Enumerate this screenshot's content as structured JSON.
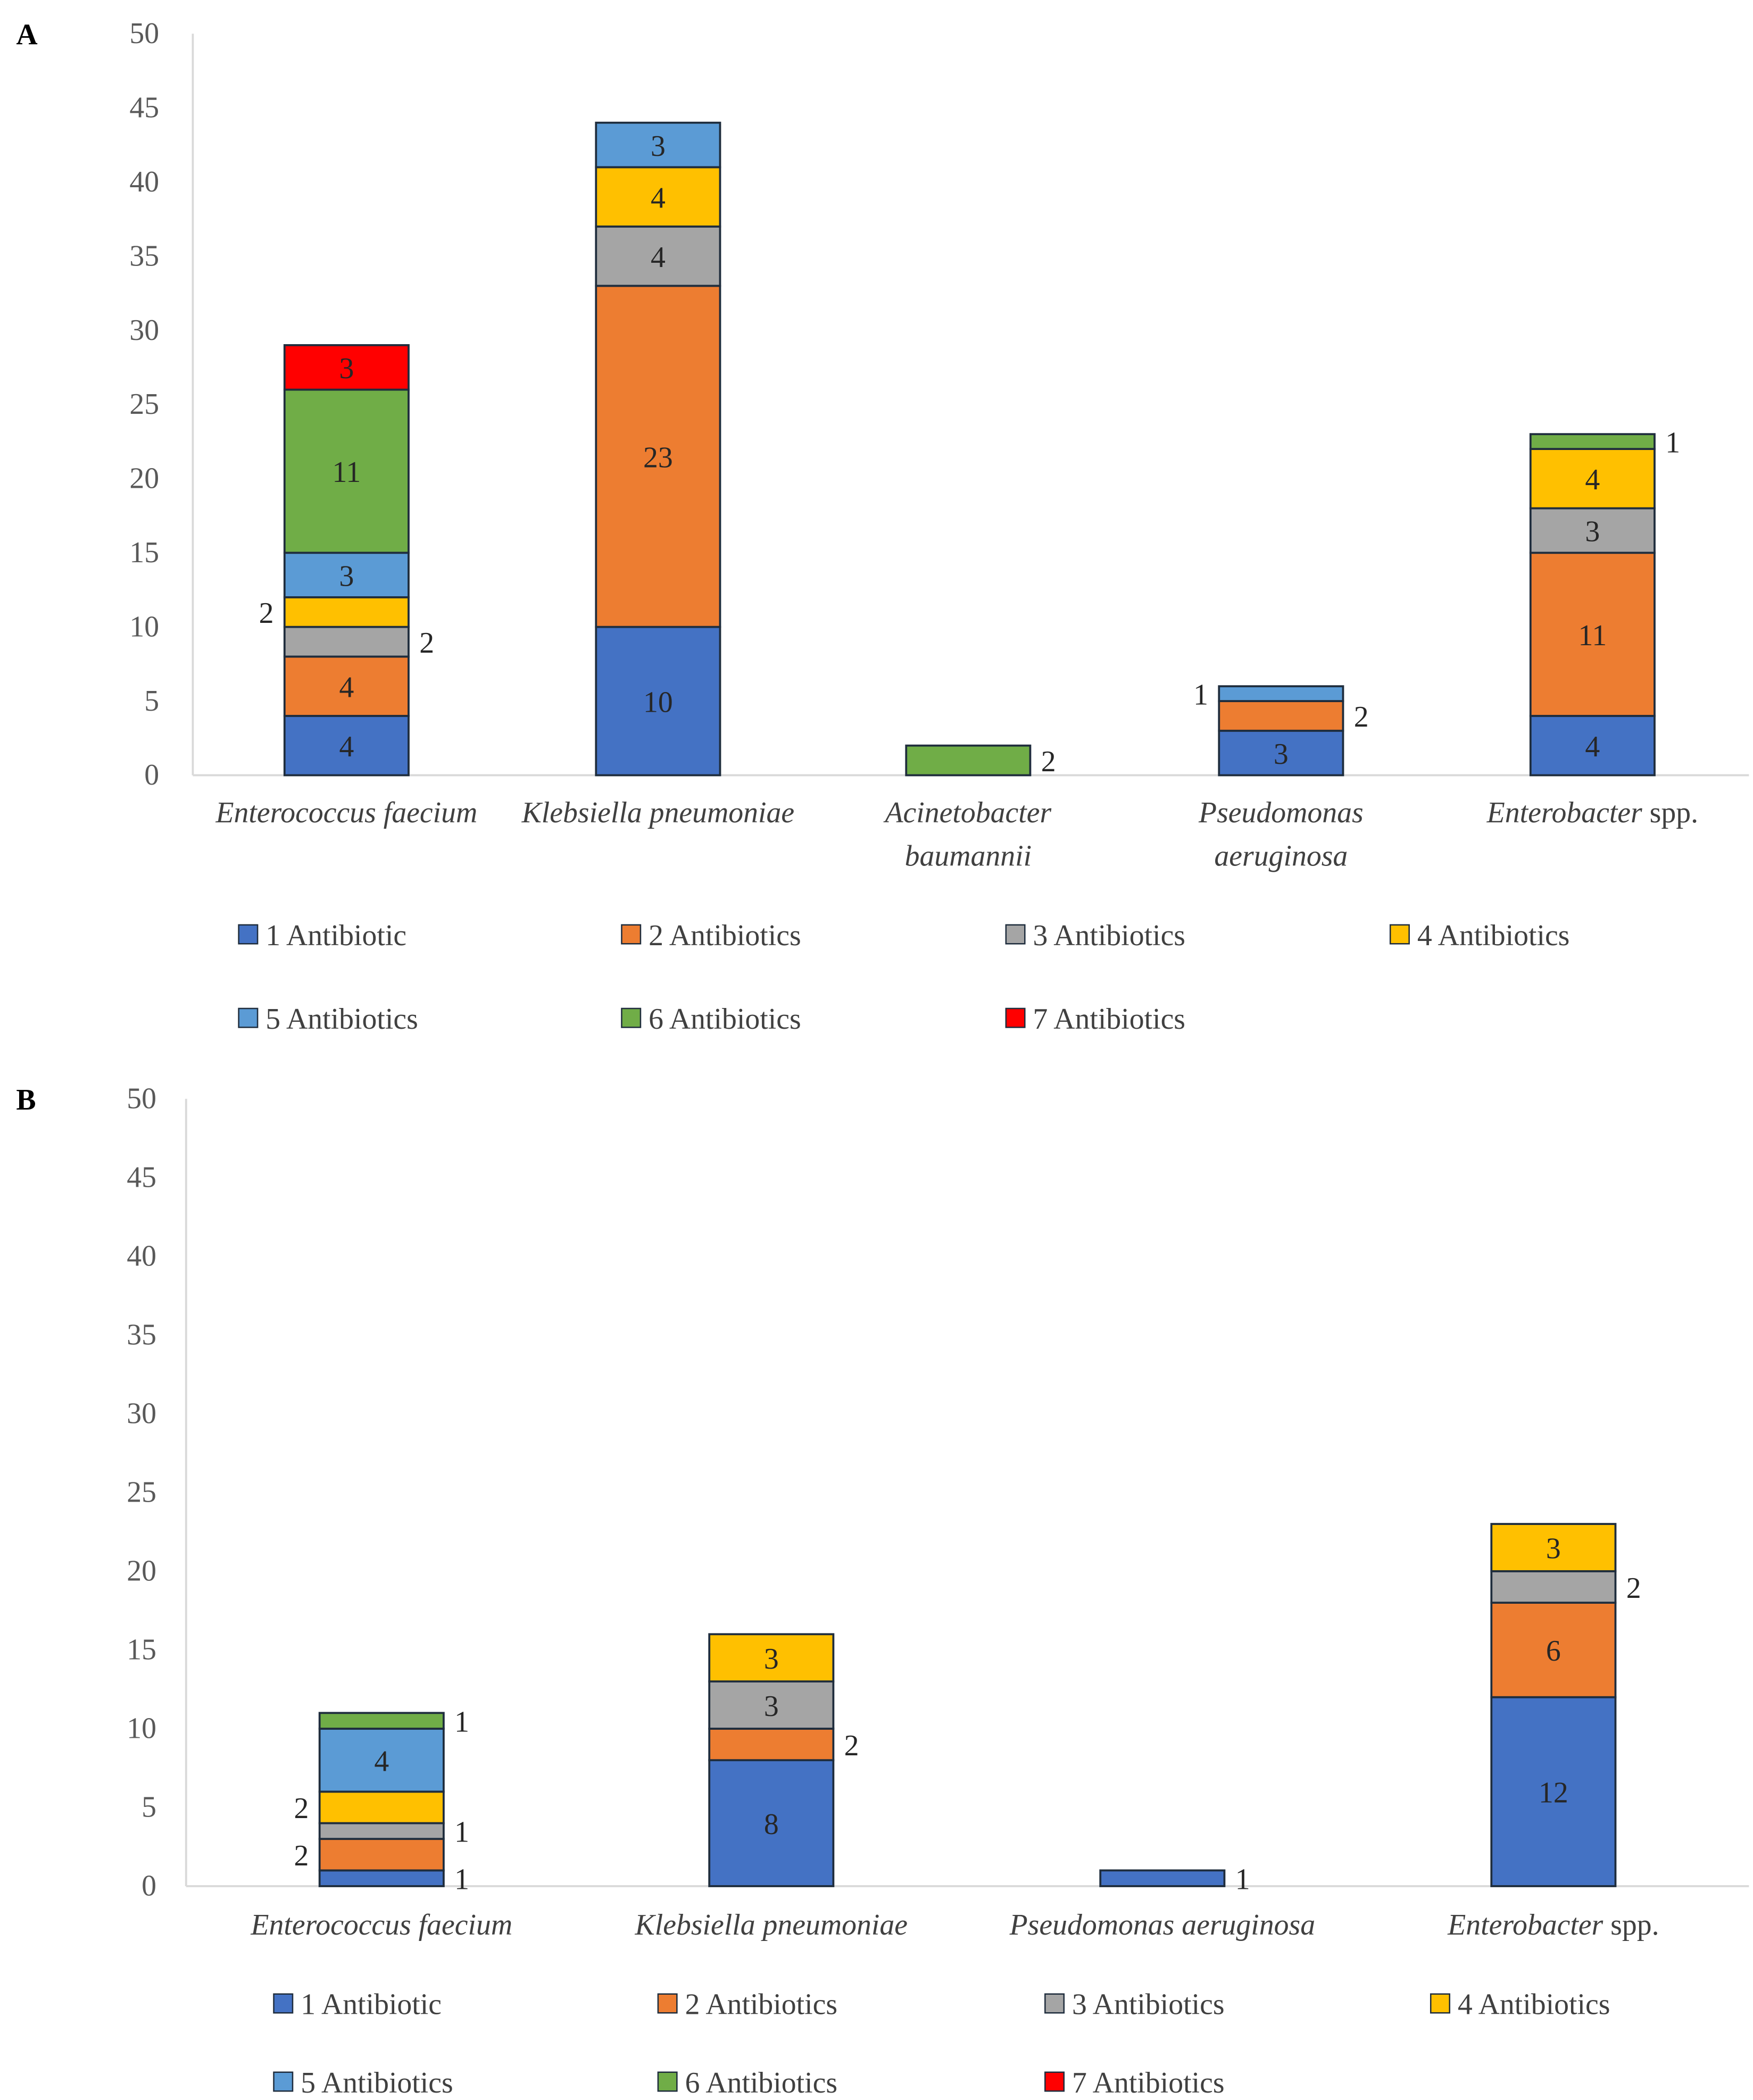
{
  "chart_data": [
    {
      "type": "bar",
      "stacked": true,
      "panel_label": "A",
      "title": "",
      "xlabel": "",
      "ylabel": "",
      "ylim": [
        0,
        50
      ],
      "yticks": [
        0,
        5,
        10,
        15,
        20,
        25,
        30,
        35,
        40,
        45,
        50
      ],
      "grid": false,
      "legend_placement": "bottom",
      "categories": [
        {
          "lines": [
            "Enterococcus faecium"
          ]
        },
        {
          "lines": [
            "Klebsiella pneumoniae"
          ]
        },
        {
          "lines": [
            "Acinetobacter",
            "baumannii"
          ]
        },
        {
          "lines": [
            "Pseudomonas",
            "aeruginosa"
          ]
        },
        {
          "lines": [
            "Enterobacter spp."
          ]
        }
      ],
      "series": [
        {
          "name": "1 Antibiotic",
          "color": "#4472C4",
          "values": [
            4,
            10,
            0,
            3,
            4
          ]
        },
        {
          "name": "2 Antibiotics",
          "color": "#ED7D31",
          "values": [
            4,
            23,
            0,
            2,
            11
          ]
        },
        {
          "name": "3 Antibiotics",
          "color": "#A5A5A5",
          "values": [
            2,
            4,
            0,
            0,
            3
          ]
        },
        {
          "name": "4 Antibiotics",
          "color": "#FFC000",
          "values": [
            2,
            4,
            0,
            0,
            4
          ]
        },
        {
          "name": "5 Antibiotics",
          "color": "#5B9BD5",
          "values": [
            3,
            3,
            0,
            1,
            0
          ]
        },
        {
          "name": "6 Antibiotics",
          "color": "#70AD47",
          "values": [
            11,
            0,
            2,
            0,
            1
          ]
        },
        {
          "name": "7 Antibiotics",
          "color": "#FF0000",
          "values": [
            3,
            0,
            0,
            0,
            0
          ]
        }
      ]
    },
    {
      "type": "bar",
      "stacked": true,
      "panel_label": "B",
      "title": "",
      "xlabel": "",
      "ylabel": "",
      "ylim": [
        0,
        50
      ],
      "yticks": [
        0,
        5,
        10,
        15,
        20,
        25,
        30,
        35,
        40,
        45,
        50
      ],
      "grid": false,
      "legend_placement": "bottom",
      "categories": [
        {
          "lines": [
            "Enterococcus faecium"
          ]
        },
        {
          "lines": [
            "Klebsiella pneumoniae"
          ]
        },
        {
          "lines": [
            "Pseudomonas aeruginosa"
          ]
        },
        {
          "lines": [
            "Enterobacter spp."
          ]
        }
      ],
      "series": [
        {
          "name": "1 Antibiotic",
          "color": "#4472C4",
          "values": [
            1,
            8,
            1,
            12
          ]
        },
        {
          "name": "2 Antibiotics",
          "color": "#ED7D31",
          "values": [
            2,
            2,
            0,
            6
          ]
        },
        {
          "name": "3 Antibiotics",
          "color": "#A5A5A5",
          "values": [
            1,
            3,
            0,
            2
          ]
        },
        {
          "name": "4 Antibiotics",
          "color": "#FFC000",
          "values": [
            2,
            3,
            0,
            3
          ]
        },
        {
          "name": "5 Antibiotics",
          "color": "#5B9BD5",
          "values": [
            4,
            0,
            0,
            0
          ]
        },
        {
          "name": "6 Antibiotics",
          "color": "#70AD47",
          "values": [
            1,
            0,
            0,
            0
          ]
        },
        {
          "name": "7 Antibiotics",
          "color": "#FF0000",
          "values": [
            0,
            0,
            0,
            0
          ]
        }
      ]
    }
  ]
}
